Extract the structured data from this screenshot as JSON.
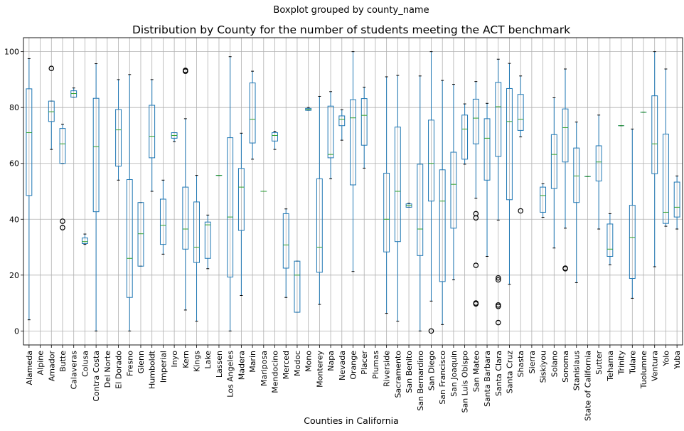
{
  "chart_data": {
    "type": "boxplot",
    "suptitle": "Boxplot grouped by county_name",
    "title": "Distribution by County for the number of students meeting the ACT benchmark",
    "xlabel": "Counties in California",
    "ylabel": "",
    "ylim": [
      -5,
      105
    ],
    "yticks": [
      0,
      20,
      40,
      60,
      80,
      100
    ],
    "grid": true,
    "boxes": [
      {
        "category": "Alameda",
        "whislo": 4,
        "q1": 48.5,
        "med": 71,
        "q3": 86.7,
        "whishi": 97.5,
        "fliers": []
      },
      {
        "category": "Alpine",
        "whislo": null,
        "q1": null,
        "med": null,
        "q3": null,
        "whishi": null,
        "fliers": []
      },
      {
        "category": "Amador",
        "whislo": 65,
        "q1": 75,
        "med": 78.5,
        "q3": 82.3,
        "whishi": 82.3,
        "fliers": [
          94
        ]
      },
      {
        "category": "Butte",
        "whislo": 60,
        "q1": 60,
        "med": 67,
        "q3": 72.5,
        "whishi": 74,
        "fliers": [
          39.3,
          37
        ]
      },
      {
        "category": "Calaveras",
        "whislo": 83.7,
        "q1": 83.7,
        "med": 85,
        "q3": 86,
        "whishi": 87,
        "fliers": []
      },
      {
        "category": "Colusa",
        "whislo": 31,
        "q1": 31.3,
        "med": 32,
        "q3": 33.3,
        "whishi": 34.7,
        "fliers": []
      },
      {
        "category": "Contra Costa",
        "whislo": 0,
        "q1": 42.7,
        "med": 66,
        "q3": 83.3,
        "whishi": 95.7,
        "fliers": []
      },
      {
        "category": "Del Norte",
        "whislo": null,
        "q1": null,
        "med": null,
        "q3": null,
        "whishi": null,
        "fliers": []
      },
      {
        "category": "El Dorado",
        "whislo": 54,
        "q1": 59,
        "med": 72,
        "q3": 79.3,
        "whishi": 90,
        "fliers": []
      },
      {
        "category": "Fresno",
        "whislo": 0,
        "q1": 12,
        "med": 26,
        "q3": 54.2,
        "whishi": 91.8,
        "fliers": []
      },
      {
        "category": "Glenn",
        "whislo": 23.2,
        "q1": 23.2,
        "med": 34.8,
        "q3": 46,
        "whishi": 46,
        "fliers": []
      },
      {
        "category": "Humboldt",
        "whislo": 50,
        "q1": 62,
        "med": 69.7,
        "q3": 80.8,
        "whishi": 90,
        "fliers": []
      },
      {
        "category": "Imperial",
        "whislo": 27.5,
        "q1": 31,
        "med": 37.8,
        "q3": 47.2,
        "whishi": 54,
        "fliers": []
      },
      {
        "category": "Inyo",
        "whislo": 67.8,
        "q1": 69,
        "med": 70,
        "q3": 71,
        "whishi": 71,
        "fliers": []
      },
      {
        "category": "Kern",
        "whislo": 7.5,
        "q1": 29.3,
        "med": 36.5,
        "q3": 51.5,
        "whishi": 76,
        "fliers": [
          93.3,
          93
        ]
      },
      {
        "category": "Kings",
        "whislo": 3.5,
        "q1": 24.5,
        "med": 30,
        "q3": 46.2,
        "whishi": 55.7,
        "fliers": []
      },
      {
        "category": "Lake",
        "whislo": 22.3,
        "q1": 26,
        "med": 38,
        "q3": 39,
        "whishi": 41.5,
        "fliers": []
      },
      {
        "category": "Lassen",
        "whislo": 55.7,
        "q1": 55.7,
        "med": 55.7,
        "q3": 55.7,
        "whishi": 55.7,
        "fliers": []
      },
      {
        "category": "Los Angeles",
        "whislo": 0,
        "q1": 19.3,
        "med": 40.8,
        "q3": 69.2,
        "whishi": 98.2,
        "fliers": []
      },
      {
        "category": "Madera",
        "whislo": 12.7,
        "q1": 36,
        "med": 51.5,
        "q3": 58.2,
        "whishi": 70.8,
        "fliers": []
      },
      {
        "category": "Marin",
        "whislo": 61.5,
        "q1": 67.3,
        "med": 75.8,
        "q3": 88.8,
        "whishi": 93,
        "fliers": []
      },
      {
        "category": "Mariposa",
        "whislo": 50,
        "q1": 50,
        "med": 50,
        "q3": 50,
        "whishi": 50,
        "fliers": []
      },
      {
        "category": "Mendocino",
        "whislo": 65,
        "q1": 68,
        "med": 70,
        "q3": 71,
        "whishi": 71.5,
        "fliers": []
      },
      {
        "category": "Merced",
        "whislo": 12,
        "q1": 22.5,
        "med": 30.8,
        "q3": 42,
        "whishi": 43.7,
        "fliers": []
      },
      {
        "category": "Modoc",
        "whislo": 6.7,
        "q1": 6.7,
        "med": 20,
        "q3": 25,
        "whishi": 25,
        "fliers": []
      },
      {
        "category": "Mono",
        "whislo": 79,
        "q1": 79,
        "med": 79.3,
        "q3": 79.7,
        "whishi": 80,
        "fliers": []
      },
      {
        "category": "Monterey",
        "whislo": 9.5,
        "q1": 21,
        "med": 30,
        "q3": 54.5,
        "whishi": 84,
        "fliers": []
      },
      {
        "category": "Napa",
        "whislo": 54.5,
        "q1": 62,
        "med": 63.2,
        "q3": 80.5,
        "whishi": 85.7,
        "fliers": []
      },
      {
        "category": "Nevada",
        "whislo": 68.3,
        "q1": 73.5,
        "med": 75.8,
        "q3": 77,
        "whishi": 79.2,
        "fliers": []
      },
      {
        "category": "Orange",
        "whislo": 21.3,
        "q1": 52.3,
        "med": 76.3,
        "q3": 82.8,
        "whishi": 100,
        "fliers": []
      },
      {
        "category": "Placer",
        "whislo": 58.3,
        "q1": 66.5,
        "med": 77.2,
        "q3": 83.2,
        "whishi": 87.3,
        "fliers": []
      },
      {
        "category": "Plumas",
        "whislo": null,
        "q1": null,
        "med": null,
        "q3": null,
        "whishi": null,
        "fliers": []
      },
      {
        "category": "Riverside",
        "whislo": 6.3,
        "q1": 28.3,
        "med": 40,
        "q3": 56.5,
        "whishi": 91,
        "fliers": []
      },
      {
        "category": "Sacramento",
        "whislo": 3.5,
        "q1": 32,
        "med": 50,
        "q3": 73,
        "whishi": 91.5,
        "fliers": []
      },
      {
        "category": "San Benito",
        "whislo": 44.3,
        "q1": 44.3,
        "med": 45,
        "q3": 45.5,
        "whishi": 45.7,
        "fliers": []
      },
      {
        "category": "San Bernardino",
        "whislo": 0,
        "q1": 27,
        "med": 36.5,
        "q3": 59.7,
        "whishi": 91.3,
        "fliers": []
      },
      {
        "category": "San Diego",
        "whislo": 10.7,
        "q1": 46.5,
        "med": 60,
        "q3": 75.5,
        "whishi": 100,
        "fliers": [
          0
        ]
      },
      {
        "category": "San Francisco",
        "whislo": 2.3,
        "q1": 17.7,
        "med": 46.5,
        "q3": 57.7,
        "whishi": 89.7,
        "fliers": []
      },
      {
        "category": "San Joaquin",
        "whislo": 18.3,
        "q1": 36.8,
        "med": 52.5,
        "q3": 64,
        "whishi": 88.3,
        "fliers": []
      },
      {
        "category": "San Luis Obispo",
        "whislo": 59.7,
        "q1": 61.5,
        "med": 72.3,
        "q3": 77.3,
        "whishi": 81.3,
        "fliers": []
      },
      {
        "category": "San Mateo",
        "whislo": 47.5,
        "q1": 67,
        "med": 76.2,
        "q3": 83,
        "whishi": 89.3,
        "fliers": [
          42,
          40.5,
          23.5,
          10,
          9.7
        ]
      },
      {
        "category": "Santa Barbara",
        "whislo": 26.7,
        "q1": 54,
        "med": 69,
        "q3": 76,
        "whishi": 81.5,
        "fliers": []
      },
      {
        "category": "Santa Clara",
        "whislo": 39.7,
        "q1": 62.5,
        "med": 80.3,
        "q3": 89,
        "whishi": 97.3,
        "fliers": [
          19,
          18.3,
          9.3,
          8.8,
          3
        ]
      },
      {
        "category": "Santa Cruz",
        "whislo": 16.7,
        "q1": 47,
        "med": 75,
        "q3": 86.8,
        "whishi": 95.8,
        "fliers": []
      },
      {
        "category": "Shasta",
        "whislo": 69.5,
        "q1": 71.8,
        "med": 75.8,
        "q3": 84.7,
        "whishi": 91.3,
        "fliers": [
          43
        ]
      },
      {
        "category": "Sierra",
        "whislo": null,
        "q1": null,
        "med": null,
        "q3": null,
        "whishi": null,
        "fliers": []
      },
      {
        "category": "Siskiyou",
        "whislo": 40.7,
        "q1": 42.5,
        "med": 48.5,
        "q3": 51.5,
        "whishi": 52.7,
        "fliers": []
      },
      {
        "category": "Solano",
        "whislo": 29.7,
        "q1": 51,
        "med": 63.2,
        "q3": 70.3,
        "whishi": 83.5,
        "fliers": []
      },
      {
        "category": "Sonoma",
        "whislo": 36.8,
        "q1": 60.5,
        "med": 72.8,
        "q3": 79.5,
        "whishi": 93.8,
        "fliers": [
          22.5,
          22.3
        ]
      },
      {
        "category": "Stanislaus",
        "whislo": 17.3,
        "q1": 46,
        "med": 55.5,
        "q3": 65.5,
        "whishi": 74.8,
        "fliers": []
      },
      {
        "category": "State of California",
        "whislo": 55.3,
        "q1": 55.3,
        "med": 55.3,
        "q3": 55.3,
        "whishi": 55.3,
        "fliers": []
      },
      {
        "category": "Sutter",
        "whislo": 36.5,
        "q1": 53.7,
        "med": 60.5,
        "q3": 66.3,
        "whishi": 77.3,
        "fliers": []
      },
      {
        "category": "Tehama",
        "whislo": 23.7,
        "q1": 26.7,
        "med": 29.3,
        "q3": 38.3,
        "whishi": 42,
        "fliers": []
      },
      {
        "category": "Trinity",
        "whislo": 73.5,
        "q1": 73.5,
        "med": 73.5,
        "q3": 73.5,
        "whishi": 73.5,
        "fliers": []
      },
      {
        "category": "Tulare",
        "whislo": 11.7,
        "q1": 18.8,
        "med": 33.5,
        "q3": 45,
        "whishi": 72.3,
        "fliers": []
      },
      {
        "category": "Tuolumne",
        "whislo": 78.3,
        "q1": 78.3,
        "med": 78.3,
        "q3": 78.3,
        "whishi": 78.3,
        "fliers": []
      },
      {
        "category": "Ventura",
        "whislo": 23,
        "q1": 56.3,
        "med": 67,
        "q3": 84.2,
        "whishi": 100,
        "fliers": []
      },
      {
        "category": "Yolo",
        "whislo": 37.5,
        "q1": 38.5,
        "med": 42.5,
        "q3": 70.5,
        "whishi": 93.8,
        "fliers": []
      },
      {
        "category": "Yuba",
        "whislo": 36.5,
        "q1": 40.8,
        "med": 44.3,
        "q3": 53.3,
        "whishi": 55.5,
        "fliers": []
      }
    ],
    "colors": {
      "box": "#1f77b4",
      "median": "#2ca02c",
      "grid": "#b0b0b0"
    }
  }
}
